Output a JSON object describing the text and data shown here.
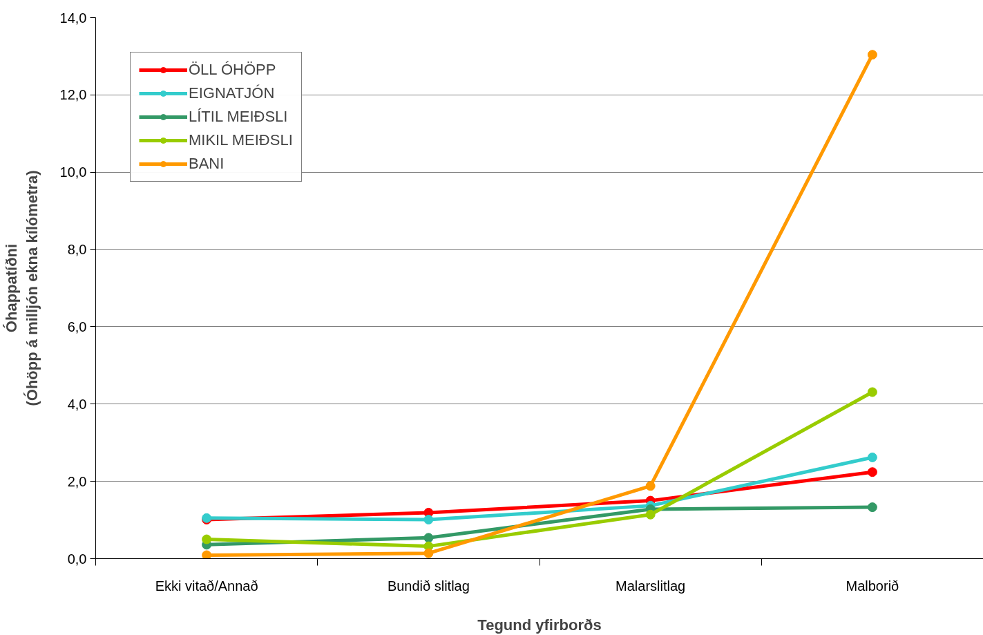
{
  "chart_data": {
    "type": "line",
    "xlabel": "Tegund yfirborðs",
    "ylabel": "Óhappatíðni\n(Óhöpp á milljón ekna kílómetra)",
    "categories": [
      "Ekki vitað/Annað",
      "Bundið slitlag",
      "Malarslitlag",
      "Malborið"
    ],
    "series": [
      {
        "name": "ÖLL ÓHÖPP",
        "color": "#ff0000",
        "values": [
          1.01,
          1.19,
          1.5,
          2.24
        ]
      },
      {
        "name": "EIGNATJÓN",
        "color": "#33cccc",
        "values": [
          1.05,
          1.01,
          1.37,
          2.62
        ]
      },
      {
        "name": "LÍTIL MEIÐSLI",
        "color": "#339966",
        "values": [
          0.36,
          0.54,
          1.28,
          1.33
        ]
      },
      {
        "name": "MIKIL MEIÐSLI",
        "color": "#99cc00",
        "values": [
          0.5,
          0.32,
          1.14,
          4.31
        ]
      },
      {
        "name": "BANI",
        "color": "#ff9900",
        "values": [
          0.09,
          0.14,
          1.88,
          13.04
        ]
      }
    ],
    "ylim": [
      0,
      14
    ],
    "yticks": [
      {
        "value": 0,
        "label": "0,0"
      },
      {
        "value": 2,
        "label": "2,0"
      },
      {
        "value": 4,
        "label": "4,0"
      },
      {
        "value": 6,
        "label": "6,0"
      },
      {
        "value": 8,
        "label": "8,0"
      },
      {
        "value": 10,
        "label": "10,0"
      },
      {
        "value": 12,
        "label": "12,0"
      },
      {
        "value": 14,
        "label": "14,0"
      }
    ],
    "grid": "y",
    "legend": "top left",
    "marker": "circle",
    "line_style": "solid"
  }
}
